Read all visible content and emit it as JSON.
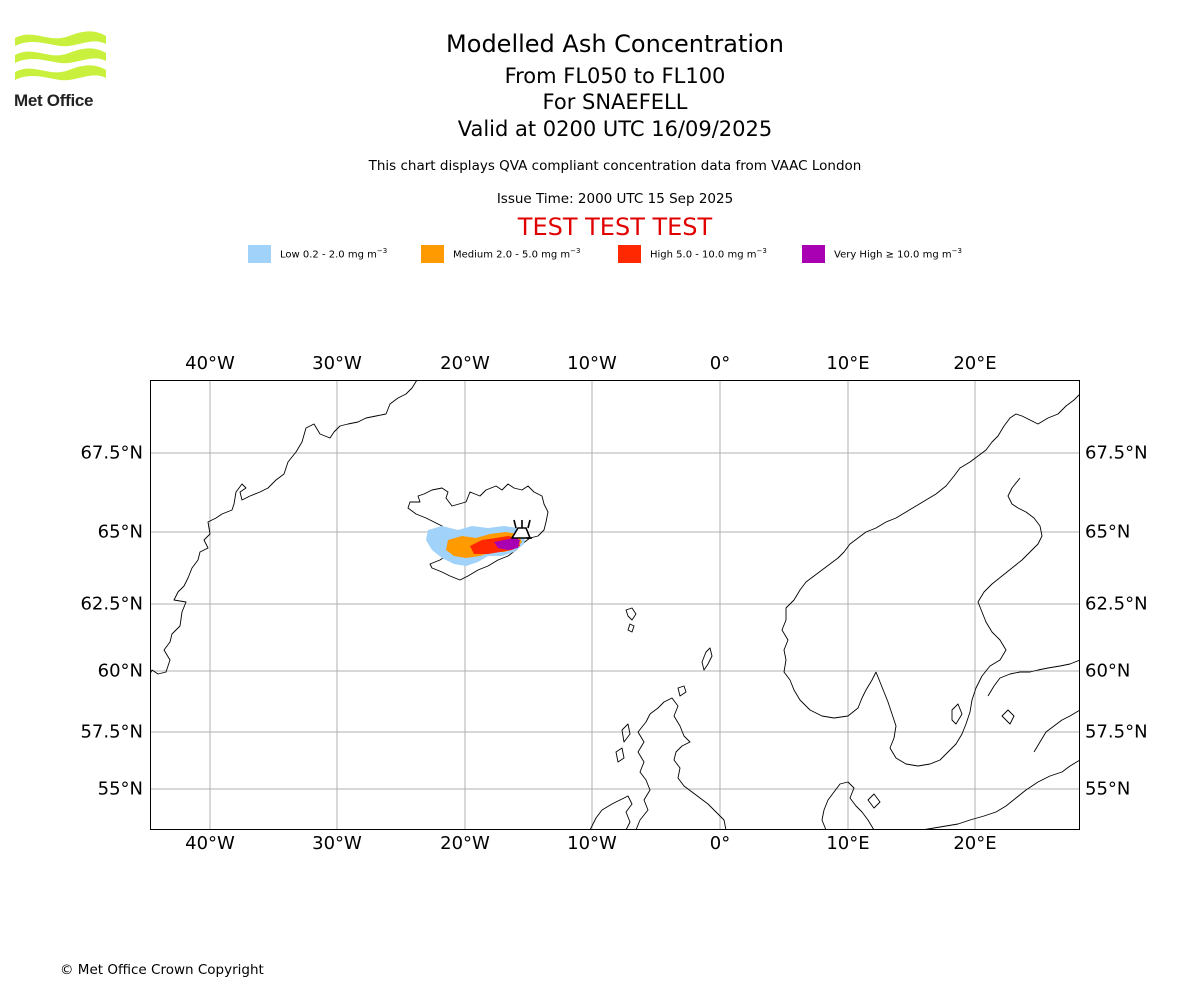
{
  "logo": {
    "text": "Met Office",
    "colors": {
      "waves": "#c8f03c",
      "text": "#222222"
    }
  },
  "title": {
    "line1": "Modelled Ash Concentration",
    "line2": "From FL050 to FL100",
    "line3": "For SNAEFELL",
    "line4": "Valid at 0200 UTC 16/09/2025"
  },
  "subtitle": "This chart displays QVA compliant concentration data from VAAC London",
  "issue_time": "Issue Time: 2000 UTC 15 Sep 2025",
  "test_banner": "TEST TEST TEST",
  "legend": [
    {
      "label": "Low 0.2 - 2.0 mg m",
      "unit_exp": "−3",
      "color": "#a0d2fa"
    },
    {
      "label": "Medium 2.0 - 5.0 mg m",
      "unit_exp": "−3",
      "color": "#ff9a00"
    },
    {
      "label": "High 5.0 - 10.0 mg m",
      "unit_exp": "−3",
      "color": "#ff2800"
    },
    {
      "label": "Very High ≥ 10.0 mg m",
      "unit_exp": "−3",
      "color": "#aa00b4"
    }
  ],
  "map": {
    "lon_labels": [
      "40°W",
      "30°W",
      "20°W",
      "10°W",
      "0°",
      "10°E",
      "20°E"
    ],
    "lat_labels": [
      "67.5°N",
      "65°N",
      "62.5°N",
      "60°N",
      "57.5°N",
      "55°N"
    ],
    "volcano": "SNAEFELL",
    "grid_color": "#b0b0b0"
  },
  "copyright": "© Met Office Crown Copyright"
}
